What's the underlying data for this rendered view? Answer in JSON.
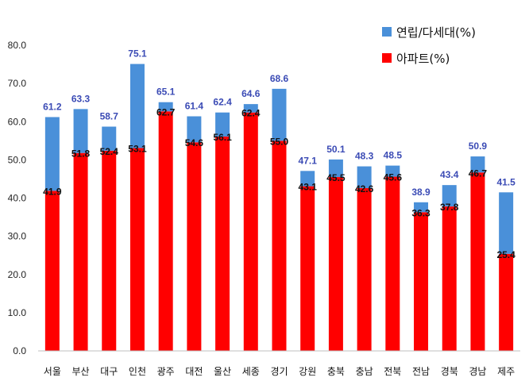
{
  "chart_data": {
    "type": "bar",
    "stacked": true,
    "categories": [
      "서울",
      "부산",
      "대구",
      "인천",
      "광주",
      "대전",
      "울산",
      "세종",
      "경기",
      "강원",
      "충북",
      "충남",
      "전북",
      "전남",
      "경북",
      "경남",
      "제주"
    ],
    "series": [
      {
        "name": "아파트(%)",
        "color": "#ff0000",
        "values": [
          41.9,
          51.8,
          52.4,
          53.1,
          62.7,
          54.6,
          56.1,
          62.4,
          55.0,
          43.1,
          45.5,
          42.6,
          45.6,
          36.3,
          37.8,
          46.7,
          25.4
        ]
      },
      {
        "name": "연립/다세대(%)",
        "color": "#4a90d9",
        "values": [
          19.3,
          11.5,
          6.3,
          22.0,
          2.4,
          6.8,
          6.3,
          2.2,
          13.6,
          4.0,
          4.6,
          5.7,
          2.9,
          2.6,
          5.6,
          4.2,
          16.1
        ]
      }
    ],
    "totals": [
      61.2,
      63.3,
      58.7,
      75.1,
      65.1,
      61.4,
      62.4,
      64.6,
      68.6,
      47.1,
      50.1,
      48.3,
      48.5,
      38.9,
      43.4,
      50.9,
      41.5
    ],
    "total_labels": [
      "61.2",
      "63.3",
      "58.7",
      "75.1",
      "65.1",
      "61.4",
      "62.4",
      "64.6",
      "68.6",
      "47.1",
      "50.1",
      "48.3",
      "48.5",
      "38.9",
      "43.4",
      "50.9",
      "41.5"
    ],
    "apt_labels": [
      "41.9",
      "51.8",
      "52.4",
      "53.1",
      "62.7",
      "54.6",
      "56.1",
      "62.4",
      "55.0",
      "43.1",
      "45.5",
      "42.6",
      "45.6",
      "36.3",
      "37.8",
      "46.7",
      "25.4"
    ],
    "ylim": [
      0,
      80
    ],
    "yticks": [
      "0.0",
      "10.0",
      "20.0",
      "30.0",
      "40.0",
      "50.0",
      "60.0",
      "70.0",
      "80.0"
    ],
    "legend_position": "top-right",
    "grid": false
  },
  "legend": {
    "items": [
      {
        "label": "연립/다세대(%)",
        "color": "#4a90d9"
      },
      {
        "label": "아파트(%)",
        "color": "#ff0000"
      }
    ]
  }
}
